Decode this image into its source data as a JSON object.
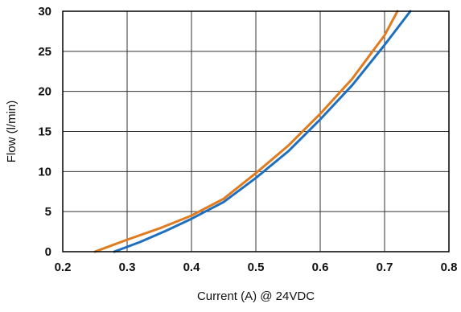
{
  "chart_data": {
    "type": "line",
    "title": "",
    "xlabel": "Current (A)  @ 24VDC",
    "ylabel": "Flow    (l/min)",
    "xlim": [
      0.2,
      0.8
    ],
    "ylim": [
      0,
      30
    ],
    "xticks": [
      0.2,
      0.3,
      0.4,
      0.5,
      0.6,
      0.7,
      0.8
    ],
    "yticks": [
      0,
      5,
      10,
      15,
      20,
      25,
      30
    ],
    "x_tick_labels": [
      "0.2",
      "0.3",
      "0.4",
      "0.5",
      "0.6",
      "0.7",
      "0.8"
    ],
    "y_tick_labels": [
      "0",
      "5",
      "10",
      "15",
      "20",
      "25",
      "30"
    ],
    "grid": true,
    "legend": "none",
    "series": [
      {
        "color": "#E07B1F",
        "points": [
          [
            0.25,
            0
          ],
          [
            0.3,
            1.5
          ],
          [
            0.35,
            2.9
          ],
          [
            0.4,
            4.5
          ],
          [
            0.45,
            6.6
          ],
          [
            0.5,
            9.8
          ],
          [
            0.55,
            13.2
          ],
          [
            0.6,
            17.2
          ],
          [
            0.65,
            21.6
          ],
          [
            0.7,
            27.0
          ],
          [
            0.72,
            30
          ]
        ]
      },
      {
        "color": "#1F6FBF",
        "points": [
          [
            0.28,
            0
          ],
          [
            0.32,
            1.2
          ],
          [
            0.36,
            2.6
          ],
          [
            0.4,
            4.1
          ],
          [
            0.45,
            6.2
          ],
          [
            0.5,
            9.2
          ],
          [
            0.55,
            12.5
          ],
          [
            0.6,
            16.5
          ],
          [
            0.65,
            20.8
          ],
          [
            0.7,
            25.8
          ],
          [
            0.74,
            30
          ]
        ]
      }
    ],
    "colors": {
      "grid": "#333333",
      "frame": "#000000",
      "text": "#111111"
    }
  }
}
